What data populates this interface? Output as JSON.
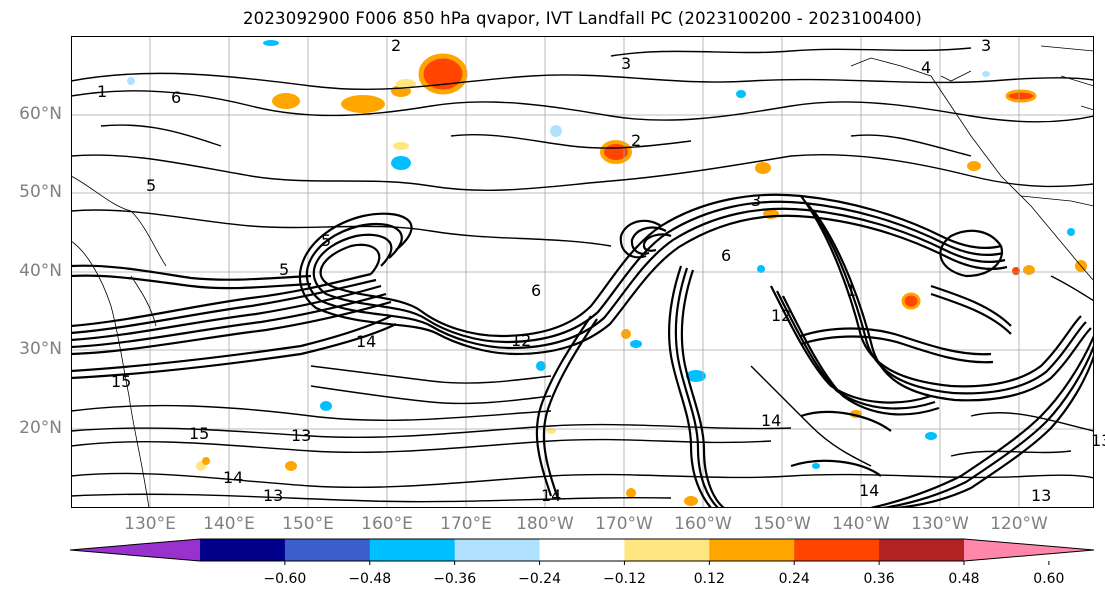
{
  "title": "2023092900 F006 850 hPa qvapor, IVT Landfall PC (2023100200 - 2023100400)",
  "map": {
    "lat_labels": [
      "60°N",
      "50°N",
      "40°N",
      "30°N",
      "20°N"
    ],
    "lon_labels": [
      "130°E",
      "140°E",
      "150°E",
      "160°E",
      "170°E",
      "180°W",
      "170°W",
      "160°W",
      "150°W",
      "140°W",
      "130°W",
      "120°W"
    ],
    "contour_labels": [
      "1",
      "2",
      "3",
      "3",
      "5",
      "6",
      "6",
      "5",
      "12",
      "14",
      "14",
      "15",
      "15",
      "13",
      "13",
      "13",
      "14",
      "14",
      "14",
      "13",
      "12",
      "6",
      "5",
      "4",
      "3",
      "1",
      "2"
    ]
  },
  "colorbar": {
    "colors": [
      "#9932cc",
      "#00008b",
      "#3a5fcd",
      "#00bfff",
      "#b0e2ff",
      "#ffffff",
      "#ffe680",
      "#ffa500",
      "#ff4500",
      "#b22222",
      "#ff88aa"
    ],
    "ticks": [
      "−0.60",
      "−0.48",
      "−0.36",
      "−0.24",
      "−0.12",
      "0.12",
      "0.24",
      "0.36",
      "0.48",
      "0.60"
    ]
  }
}
